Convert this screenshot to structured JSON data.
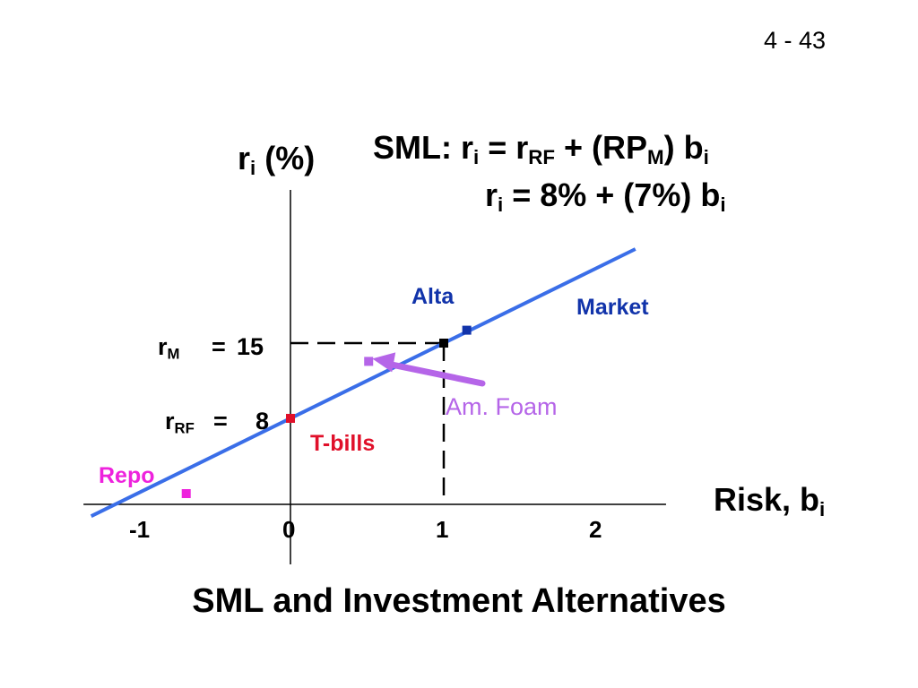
{
  "page_number": "4 - 43",
  "title": "SML and Investment Alternatives",
  "equations": {
    "line1": {
      "a": "SML: r",
      "a_sub": "i",
      "b": " = r",
      "b_sub": "RF",
      "c": " + (RP",
      "c_sub": "M",
      "d": ") b",
      "d_sub": "i"
    },
    "line2": {
      "a": "r",
      "a_sub": "i",
      "b": " = 8% + (7%) b",
      "b_sub": "i"
    }
  },
  "y_axis_label": {
    "main": "r",
    "sub": "i",
    "rest": " (%)"
  },
  "x_axis_label": {
    "main": "Risk, b",
    "sub": "i"
  },
  "levels": {
    "rm": {
      "label": "r",
      "sub": "M",
      "eq": "=",
      "value": "15"
    },
    "rrf": {
      "label": "r",
      "sub": "RF",
      "eq": "=",
      "value": "8"
    }
  },
  "colors": {
    "sml_line": "#3a6ee8",
    "alta": "#1133aa",
    "market": "#1133aa",
    "am_foam": "#b565e8",
    "t_bills": "#e0102a",
    "repo": "#ee22dd",
    "axes": "#000000"
  },
  "chart_data": {
    "type": "line",
    "xlabel": "Risk, bi",
    "ylabel": "ri (%)",
    "x_ticks": [
      "-1",
      "0",
      "1",
      "2"
    ],
    "xlim": [
      -1.35,
      2.45
    ],
    "sml": {
      "intercept": 8,
      "slope": 7,
      "x": [
        -1.3,
        2.25
      ],
      "y": [
        -1.1,
        23.75
      ]
    },
    "reference_lines": {
      "market_beta": 1,
      "market_return": 15
    },
    "points": [
      {
        "name": "Alta",
        "x": 1.15,
        "y": 16.2,
        "color": "#1133aa"
      },
      {
        "name": "Market",
        "x": 1.0,
        "y": 15.0,
        "color": "#000000"
      },
      {
        "name": "Am. Foam",
        "x": 0.51,
        "y": 13.3,
        "color": "#b565e8"
      },
      {
        "name": "T-bills",
        "x": 0.0,
        "y": 8.0,
        "color": "#e0102a"
      },
      {
        "name": "Repo",
        "x": -0.68,
        "y": 1.0,
        "color": "#ee22dd"
      }
    ]
  }
}
